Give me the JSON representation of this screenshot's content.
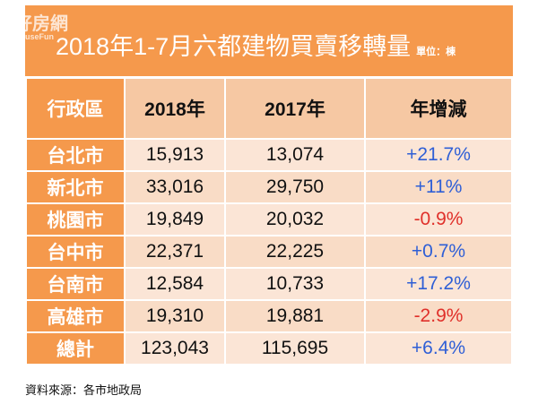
{
  "title": "2018年1-7月六都建物買賣移轉量",
  "unit": "單位：棟",
  "watermark": {
    "logo": "好房網",
    "sub": "HouseFun"
  },
  "colors": {
    "orange": "#f5994c",
    "positive": "#2f5fd6",
    "negative": "#e0302a"
  },
  "headers": [
    "行政區",
    "2018年",
    "2017年",
    "年增減"
  ],
  "rows": [
    {
      "city": "台北市",
      "y2018": "15,913",
      "y2017": "13,074",
      "change": "+21.7%",
      "sign": "pos"
    },
    {
      "city": "新北市",
      "y2018": "33,016",
      "y2017": "29,750",
      "change": "+11%",
      "sign": "pos"
    },
    {
      "city": "桃園市",
      "y2018": "19,849",
      "y2017": "20,032",
      "change": "-0.9%",
      "sign": "neg"
    },
    {
      "city": "台中市",
      "y2018": "22,371",
      "y2017": "22,225",
      "change": "+0.7%",
      "sign": "pos"
    },
    {
      "city": "台南市",
      "y2018": "12,584",
      "y2017": "10,733",
      "change": "+17.2%",
      "sign": "pos"
    },
    {
      "city": "高雄市",
      "y2018": "19,310",
      "y2017": "19,881",
      "change": "-2.9%",
      "sign": "neg"
    },
    {
      "city": "總計",
      "y2018": "123,043",
      "y2017": "115,695",
      "change": "+6.4%",
      "sign": "pos"
    }
  ],
  "source": "資料來源：各市地政局"
}
